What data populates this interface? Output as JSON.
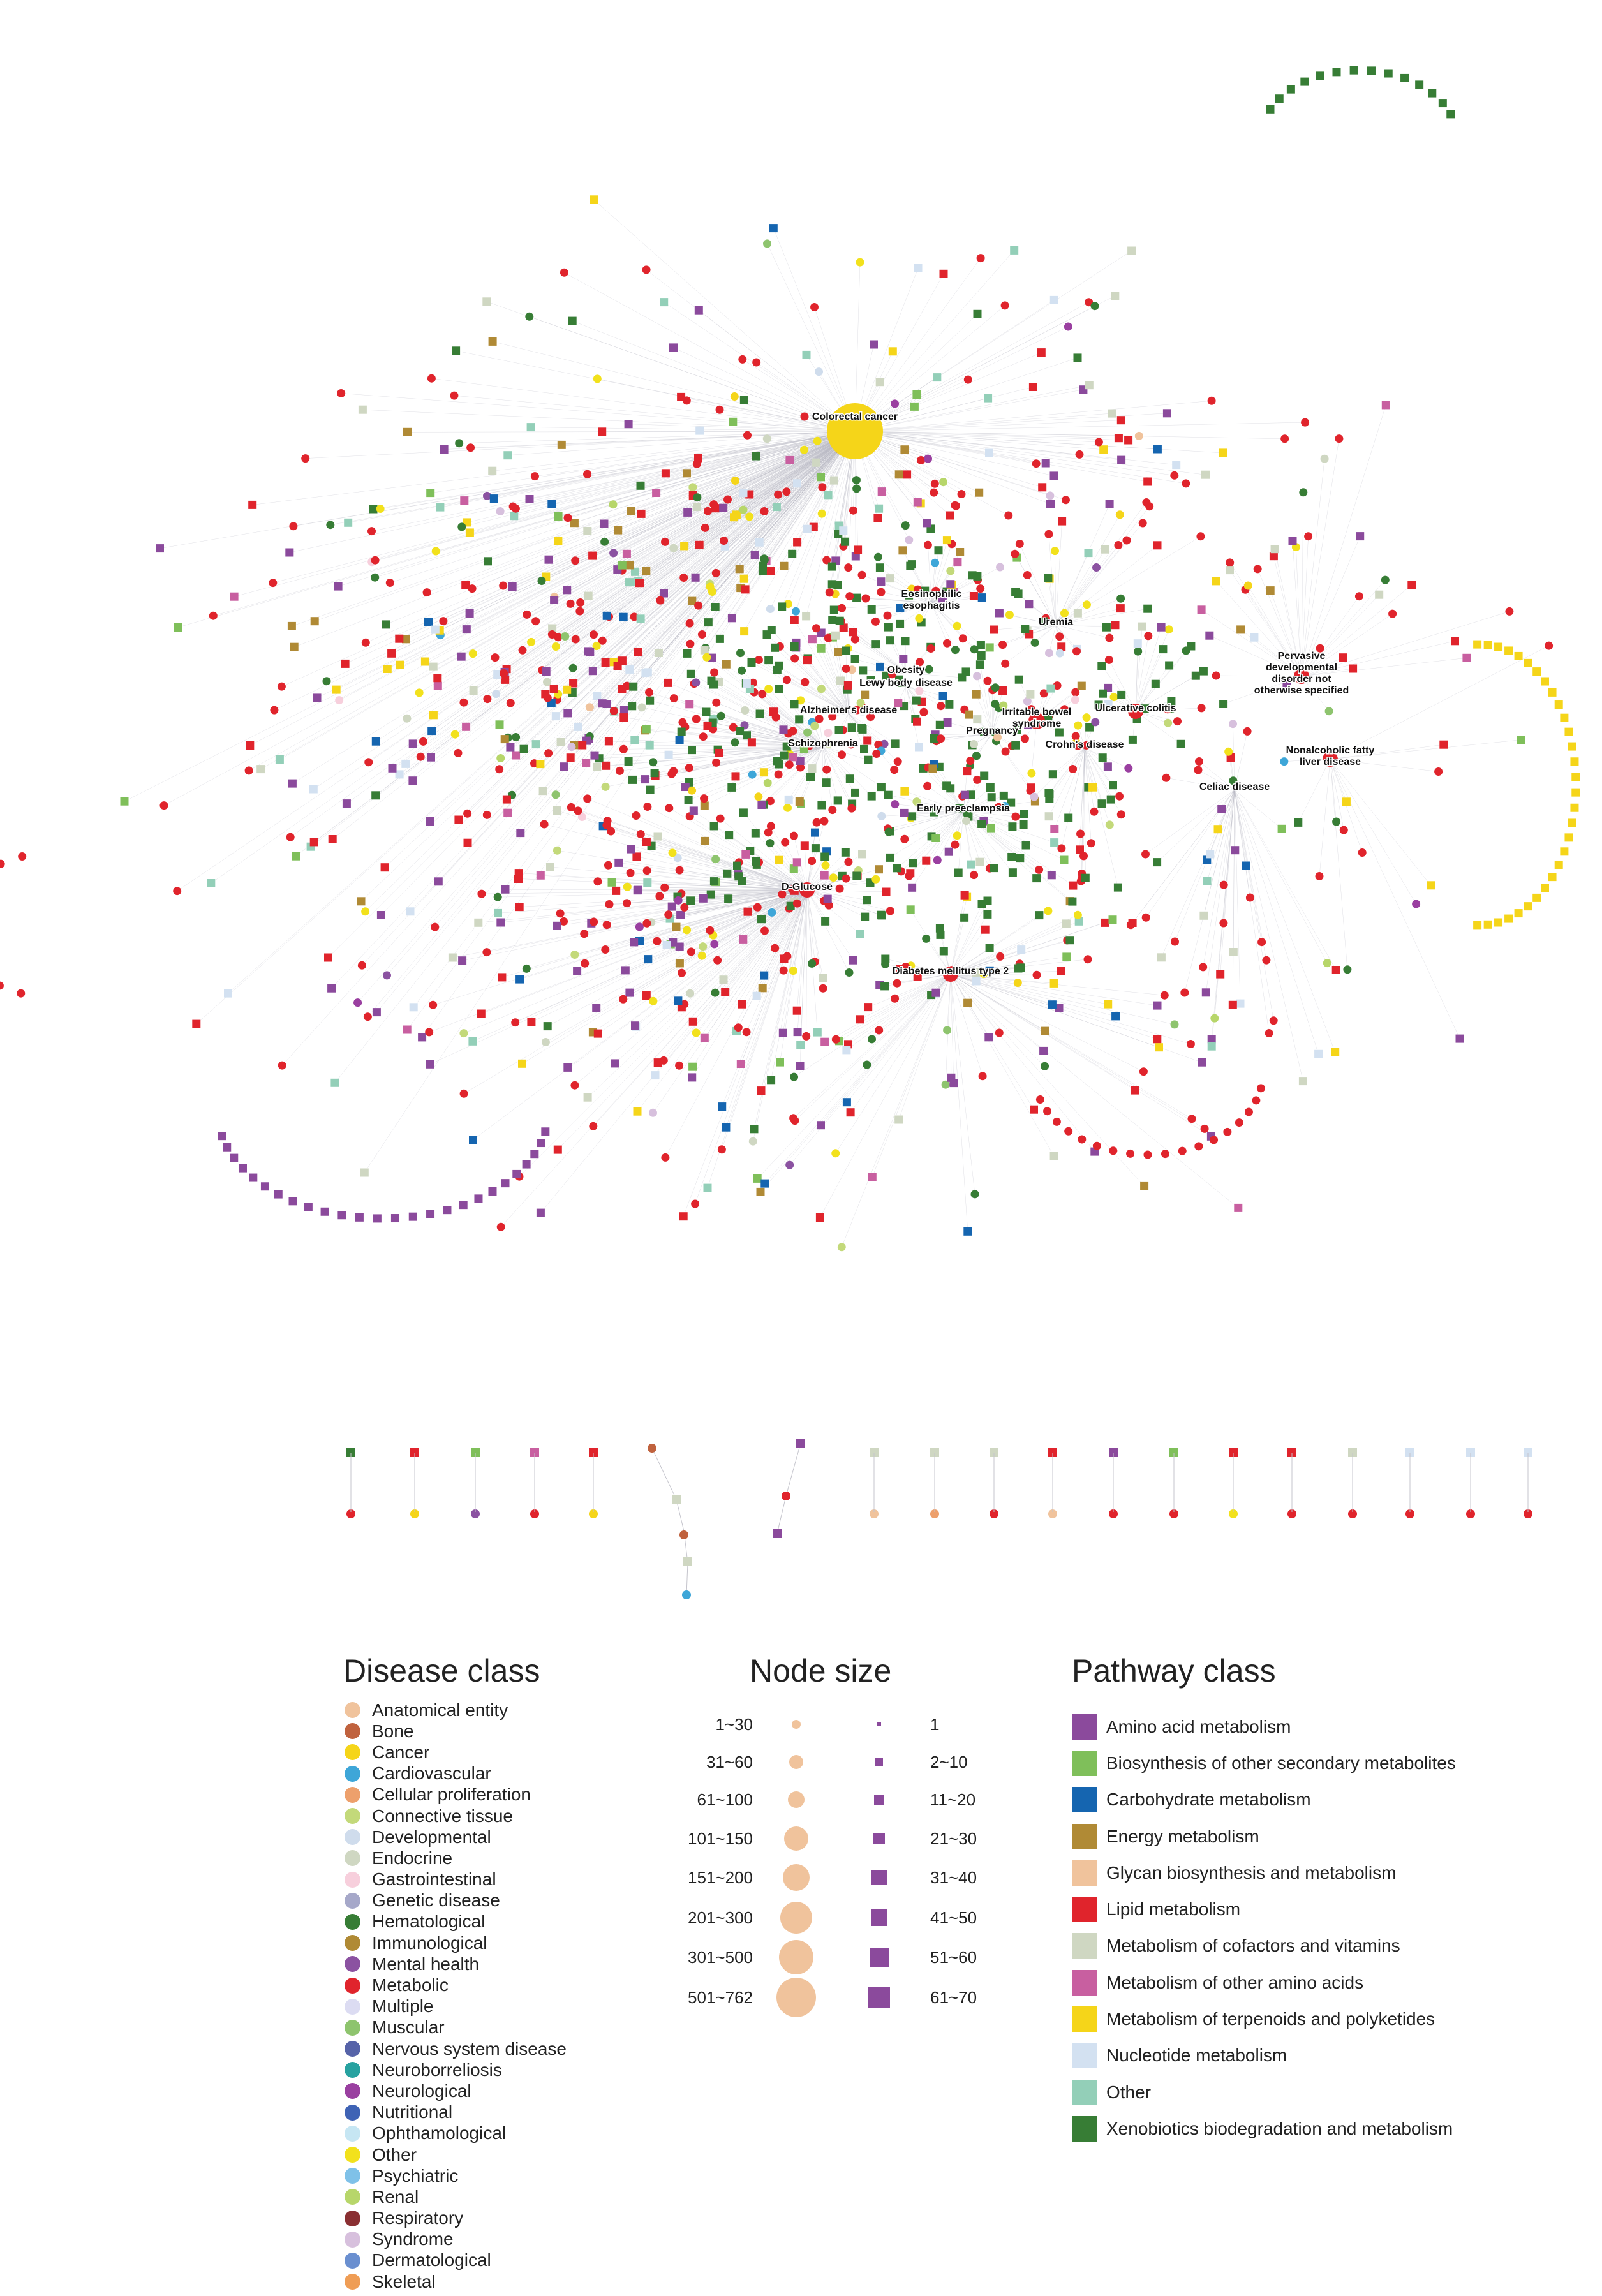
{
  "network": {
    "hub_labels": [
      "Colorectal cancer",
      "Eosinophilic esophagitis",
      "Uremia",
      "Obesity",
      "Lewy body disease",
      "Alzheimer's disease",
      "Schizophrenia",
      "Irritable bowel syndrome",
      "Pregnancy",
      "Crohn's disease",
      "Ulcerative colitis",
      "Pervasive developmental disorder not otherwise specified",
      "Nonalcoholic fatty liver disease",
      "Celiac disease",
      "Early preeclampsia",
      "D-Glucose",
      "Diabetes mellitus type 2"
    ]
  },
  "disease_legend": {
    "title": "Disease class",
    "items": [
      {
        "label": "Anatomical entity",
        "color": "#f0c39c"
      },
      {
        "label": "Bone",
        "color": "#c0623e"
      },
      {
        "label": "Cancer",
        "color": "#f5d519"
      },
      {
        "label": "Cardiovascular",
        "color": "#3ea6d8"
      },
      {
        "label": "Cellular proliferation",
        "color": "#eda06c"
      },
      {
        "label": "Connective tissue",
        "color": "#c3d97a"
      },
      {
        "label": "Developmental",
        "color": "#cfdcec"
      },
      {
        "label": "Endocrine",
        "color": "#cfd7c2"
      },
      {
        "label": "Gastrointestinal",
        "color": "#f7cfdc"
      },
      {
        "label": "Genetic disease",
        "color": "#a6a8c9"
      },
      {
        "label": "Hematological",
        "color": "#377d35"
      },
      {
        "label": "Immunological",
        "color": "#b08a35"
      },
      {
        "label": "Mental health",
        "color": "#8b52a1"
      },
      {
        "label": "Metabolic",
        "color": "#e0242c"
      },
      {
        "label": "Multiple",
        "color": "#dcdcf2"
      },
      {
        "label": "Muscular",
        "color": "#8ec46e"
      },
      {
        "label": "Nervous system disease",
        "color": "#5663a8"
      },
      {
        "label": "Neuroborreliosis",
        "color": "#27a2a0"
      },
      {
        "label": "Neurological",
        "color": "#9a3fa0"
      },
      {
        "label": "Nutritional",
        "color": "#3f63b5"
      },
      {
        "label": "Ophthamological",
        "color": "#c6e6f3"
      },
      {
        "label": "Other",
        "color": "#f2e11c"
      },
      {
        "label": "Psychiatric",
        "color": "#7fc1e8"
      },
      {
        "label": "Renal",
        "color": "#b7d66a"
      },
      {
        "label": "Respiratory",
        "color": "#8a2f32"
      },
      {
        "label": "Syndrome",
        "color": "#d7c0dd"
      },
      {
        "label": "Dermatological",
        "color": "#6a8fd0"
      },
      {
        "label": "Skeletal",
        "color": "#ef9d55"
      }
    ]
  },
  "size_legend": {
    "title": "Node size",
    "disease_sizes": [
      "1~30",
      "31~60",
      "61~100",
      "101~150",
      "151~200",
      "201~300",
      "301~500",
      "501~762"
    ],
    "pathway_sizes": [
      "1",
      "2~10",
      "11~20",
      "21~30",
      "31~40",
      "41~50",
      "51~60",
      "61~70"
    ],
    "disease_color": "#f0c39c",
    "pathway_color": "#8b4a9c"
  },
  "pathway_legend": {
    "title": "Pathway class",
    "items": [
      {
        "label": "Amino acid metabolism",
        "color": "#8b4a9c"
      },
      {
        "label": "Biosynthesis of other secondary metabolites",
        "color": "#7fbf5a"
      },
      {
        "label": "Carbohydrate metabolism",
        "color": "#1565b0"
      },
      {
        "label": "Energy metabolism",
        "color": "#b08a35"
      },
      {
        "label": "Glycan biosynthesis and metabolism",
        "color": "#f0c39c"
      },
      {
        "label": "Lipid metabolism",
        "color": "#e0242c"
      },
      {
        "label": "Metabolism of cofactors and vitamins",
        "color": "#cfd7c2"
      },
      {
        "label": "Metabolism of other amino acids",
        "color": "#c85fa0"
      },
      {
        "label": "Metabolism of terpenoids and polyketides",
        "color": "#f5d519"
      },
      {
        "label": "Nucleotide metabolism",
        "color": "#d3e1f1"
      },
      {
        "label": "Other",
        "color": "#93cfb8"
      },
      {
        "label": "Xenobiotics biodegradation and metabolism",
        "color": "#377d35"
      }
    ]
  }
}
